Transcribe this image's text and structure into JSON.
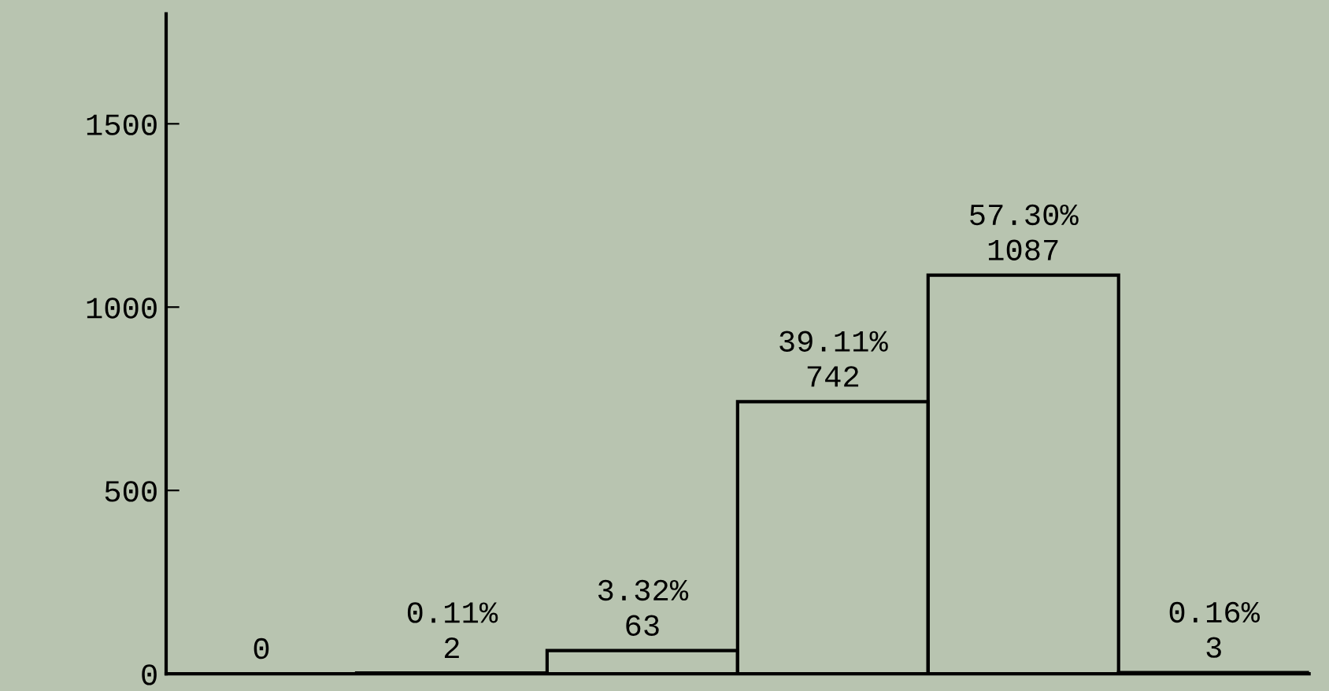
{
  "chart_data": {
    "type": "bar",
    "categories": [
      null,
      null,
      null,
      null,
      null,
      null
    ],
    "values": [
      0,
      2,
      63,
      742,
      1087,
      3
    ],
    "value_labels": [
      "0",
      "0.11%\n2",
      "3.32%\n63",
      "39.11%\n742",
      "57.30%\n1087",
      "0.16%\n3"
    ],
    "color": "#000000",
    "ylim": [
      0,
      1800
    ],
    "yticks": [
      0,
      500,
      1000,
      1500
    ],
    "grid": false,
    "legend": false
  }
}
